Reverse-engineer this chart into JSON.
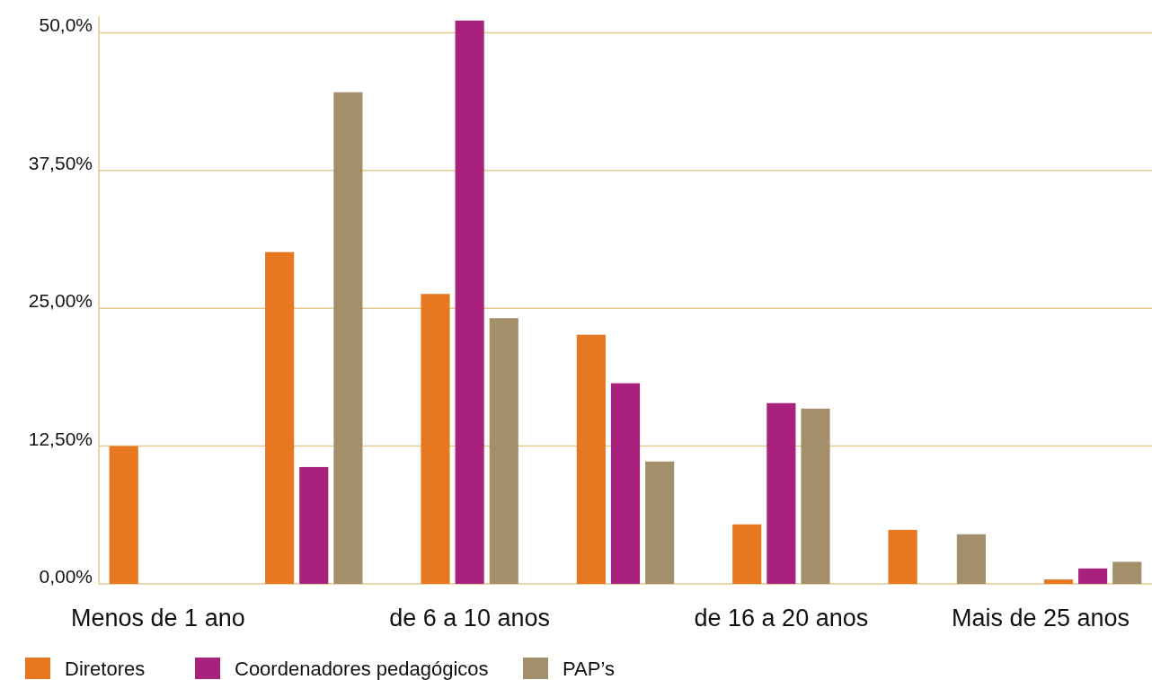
{
  "chart_data": {
    "type": "bar",
    "categories": [
      "Menos de 1 ano",
      null,
      "de 6 a 10 anos",
      null,
      "de 16 a 20 anos",
      null,
      "Mais de 25 anos"
    ],
    "series": [
      {
        "name": "Diretores",
        "color": "#e87722",
        "values": [
          12.5,
          30.1,
          26.3,
          22.6,
          5.4,
          4.9,
          0.4
        ]
      },
      {
        "name": "Coordenadores pedagógicos",
        "color": "#a8217d",
        "values": [
          0,
          10.6,
          51.1,
          18.2,
          16.4,
          0,
          1.4
        ]
      },
      {
        "name": "PAP’s",
        "color": "#a38f69",
        "values": [
          0,
          44.6,
          24.1,
          11.1,
          15.9,
          4.5,
          2.0
        ]
      }
    ],
    "ylim": [
      0,
      51.5
    ],
    "yticks": [
      {
        "value": 0,
        "label": "0,00%"
      },
      {
        "value": 12.5,
        "label": "12,50%"
      },
      {
        "value": 25,
        "label": "25,00%"
      },
      {
        "value": 37.5,
        "label": "37,50%"
      },
      {
        "value": 50,
        "label": "50,0%"
      }
    ],
    "grid": "y",
    "legend": "bottom left"
  }
}
